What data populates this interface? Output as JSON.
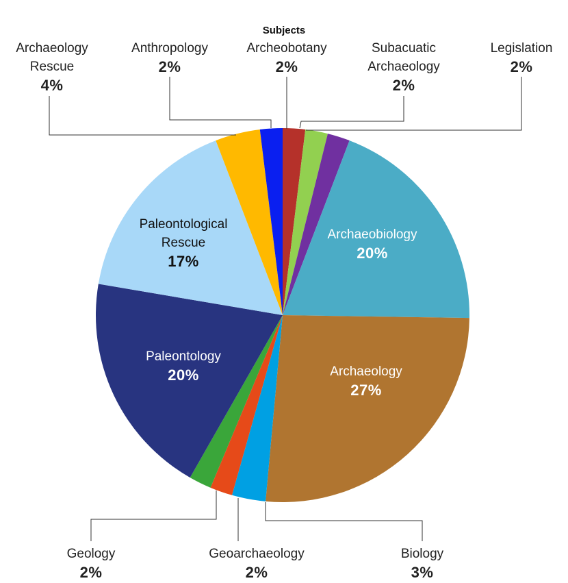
{
  "chart_data": {
    "type": "pie",
    "title": "Subjects",
    "categories": [
      "Archeobotany",
      "Subacuatic Archaeology",
      "Legislation",
      "Archaeobiology",
      "Archaeology",
      "Biology",
      "Geoarchaeology",
      "Geology",
      "Paleontology",
      "Paleontological Rescue",
      "Archaeology Rescue",
      "Anthropology"
    ],
    "values": [
      2,
      2,
      2,
      20,
      27,
      3,
      2,
      2,
      20,
      17,
      4,
      2
    ],
    "value_labels": [
      "2%",
      "2%",
      "2%",
      "20%",
      "27%",
      "3%",
      "2%",
      "2%",
      "20%",
      "17%",
      "4%",
      "2%"
    ],
    "colors": [
      "#b5312a",
      "#92d050",
      "#7030a0",
      "#4bacc6",
      "#b07530",
      "#00a0e3",
      "#e64a19",
      "#3aa63a",
      "#283480",
      "#a8d8f8",
      "#ffb900",
      "#0a1ff0"
    ]
  }
}
